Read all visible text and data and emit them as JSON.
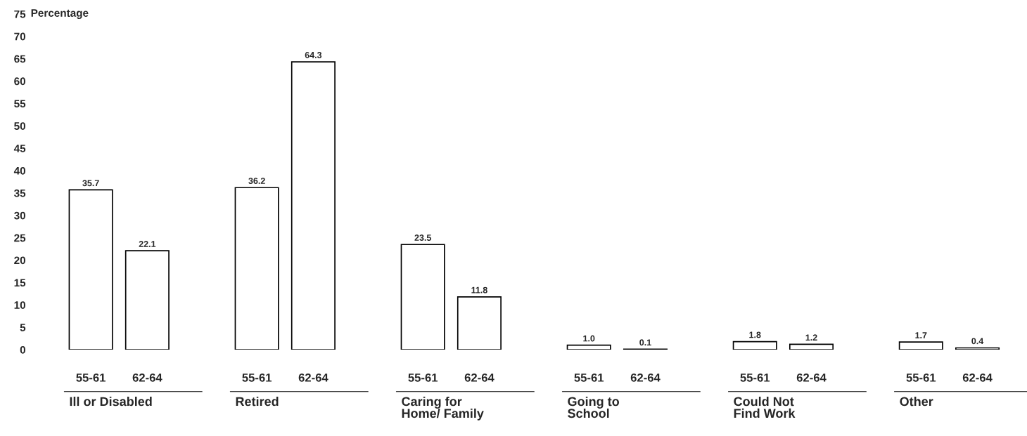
{
  "chart_data": {
    "type": "bar",
    "ylabel": "Percentage",
    "categories": [
      "Ill or Disabled",
      "Retired",
      "Caring for\nHome/ Family",
      "Going to\nSchool",
      "Could Not\nFind Work",
      "Other"
    ],
    "series": [
      {
        "name": "55-61",
        "color": "#ffffff",
        "values": [
          35.7,
          36.2,
          23.5,
          1.0,
          1.8,
          1.7
        ],
        "value_labels": [
          "35.7",
          "36.2",
          "23.5",
          "1.0",
          "1.8",
          "1.7"
        ]
      },
      {
        "name": "62-64",
        "color": "#ffffff",
        "values": [
          22.1,
          64.3,
          11.8,
          0.1,
          1.2,
          0.4
        ],
        "value_labels": [
          "22.1",
          "64.3",
          "11.8",
          "0.1",
          "1.2",
          "0.4"
        ]
      }
    ],
    "ylim": [
      0,
      75
    ],
    "yticks": [
      0,
      5,
      10,
      15,
      20,
      25,
      30,
      35,
      40,
      45,
      50,
      55,
      60,
      65,
      70,
      75
    ],
    "grid": false,
    "legend": false
  }
}
